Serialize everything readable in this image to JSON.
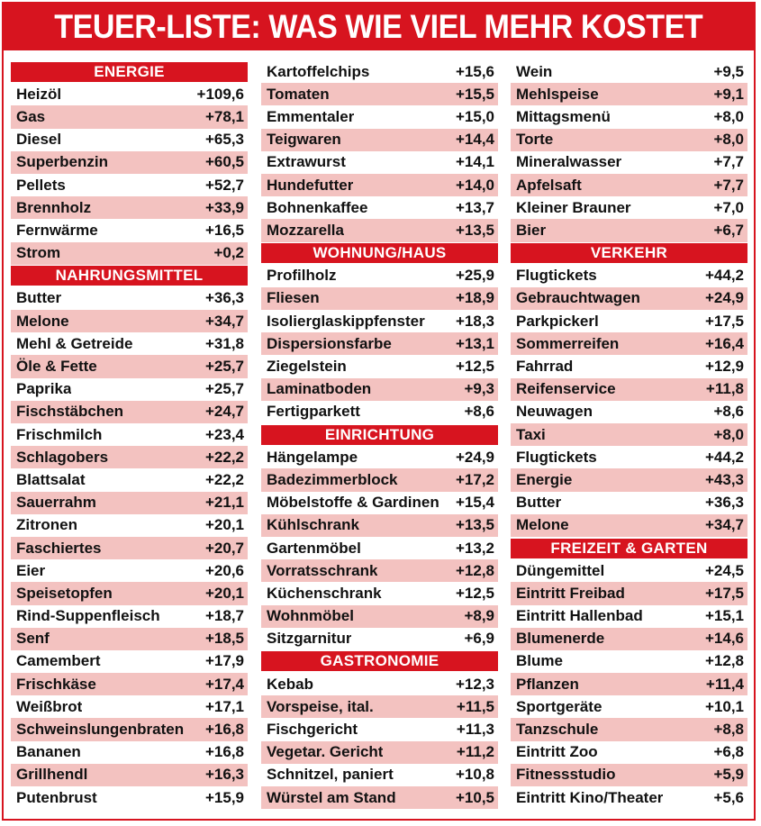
{
  "title": "TEUER-LISTE: WAS WIE VIEL MEHR KOSTET",
  "colors": {
    "accent": "#d7141f",
    "stripe": "#f3c2c0"
  },
  "columns": [
    [
      {
        "type": "header",
        "label": "ENERGIE"
      },
      {
        "type": "row",
        "label": "Heizöl",
        "value": "+109,6"
      },
      {
        "type": "row",
        "label": "Gas",
        "value": "+78,1"
      },
      {
        "type": "row",
        "label": "Diesel",
        "value": "+65,3"
      },
      {
        "type": "row",
        "label": "Superbenzin",
        "value": "+60,5"
      },
      {
        "type": "row",
        "label": "Pellets",
        "value": "+52,7"
      },
      {
        "type": "row",
        "label": "Brennholz",
        "value": "+33,9"
      },
      {
        "type": "row",
        "label": "Fernwärme",
        "value": "+16,5"
      },
      {
        "type": "row",
        "label": "Strom",
        "value": "+0,2"
      },
      {
        "type": "header",
        "label": "NAHRUNGSMITTEL"
      },
      {
        "type": "row",
        "label": "Butter",
        "value": "+36,3"
      },
      {
        "type": "row",
        "label": "Melone",
        "value": "+34,7"
      },
      {
        "type": "row",
        "label": "Mehl & Getreide",
        "value": "+31,8"
      },
      {
        "type": "row",
        "label": "Öle & Fette",
        "value": "+25,7"
      },
      {
        "type": "row",
        "label": "Paprika",
        "value": "+25,7"
      },
      {
        "type": "row",
        "label": "Fischstäbchen",
        "value": "+24,7"
      },
      {
        "type": "row",
        "label": "Frischmilch",
        "value": "+23,4"
      },
      {
        "type": "row",
        "label": "Schlagobers",
        "value": "+22,2"
      },
      {
        "type": "row",
        "label": "Blattsalat",
        "value": "+22,2"
      },
      {
        "type": "row",
        "label": "Sauerrahm",
        "value": "+21,1"
      },
      {
        "type": "row",
        "label": "Zitronen",
        "value": "+20,1"
      },
      {
        "type": "row",
        "label": "Faschiertes",
        "value": "+20,7"
      },
      {
        "type": "row",
        "label": "Eier",
        "value": "+20,6"
      },
      {
        "type": "row",
        "label": "Speisetopfen",
        "value": "+20,1"
      },
      {
        "type": "row",
        "label": "Rind-Suppenfleisch",
        "value": "+18,7"
      },
      {
        "type": "row",
        "label": "Senf",
        "value": "+18,5"
      },
      {
        "type": "row",
        "label": "Camembert",
        "value": "+17,9"
      },
      {
        "type": "row",
        "label": "Frischkäse",
        "value": "+17,4"
      },
      {
        "type": "row",
        "label": "Weißbrot",
        "value": "+17,1"
      },
      {
        "type": "row",
        "label": "Schweinslungenbraten",
        "value": "+16,8"
      },
      {
        "type": "row",
        "label": "Bananen",
        "value": "+16,8"
      },
      {
        "type": "row",
        "label": "Grillhendl",
        "value": "+16,3"
      },
      {
        "type": "row",
        "label": "Putenbrust",
        "value": "+15,9"
      }
    ],
    [
      {
        "type": "row",
        "label": "Kartoffelchips",
        "value": "+15,6"
      },
      {
        "type": "row",
        "label": "Tomaten",
        "value": "+15,5"
      },
      {
        "type": "row",
        "label": "Emmentaler",
        "value": "+15,0"
      },
      {
        "type": "row",
        "label": "Teigwaren",
        "value": "+14,4"
      },
      {
        "type": "row",
        "label": "Extrawurst",
        "value": "+14,1"
      },
      {
        "type": "row",
        "label": "Hundefutter",
        "value": "+14,0"
      },
      {
        "type": "row",
        "label": "Bohnenkaffee",
        "value": "+13,7"
      },
      {
        "type": "row",
        "label": "Mozzarella",
        "value": "+13,5"
      },
      {
        "type": "header",
        "label": "WOHNUNG/HAUS"
      },
      {
        "type": "row",
        "label": "Profilholz",
        "value": "+25,9"
      },
      {
        "type": "row",
        "label": "Fliesen",
        "value": "+18,9"
      },
      {
        "type": "row",
        "label": "Isoliergl­askippfenster",
        "value": "+18,3"
      },
      {
        "type": "row",
        "label": "Dispersionsfarbe",
        "value": "+13,1"
      },
      {
        "type": "row",
        "label": "Ziegelstein",
        "value": "+12,5"
      },
      {
        "type": "row",
        "label": "Laminatboden",
        "value": "+9,3"
      },
      {
        "type": "row",
        "label": "Fertigparkett",
        "value": "+8,6"
      },
      {
        "type": "header",
        "label": "EINRICHTUNG"
      },
      {
        "type": "row",
        "label": "Hängelampe",
        "value": "+24,9"
      },
      {
        "type": "row",
        "label": "Badezimmerblock",
        "value": "+17,2"
      },
      {
        "type": "row",
        "label": "Möbelstoffe & Gardinen",
        "value": "+15,4"
      },
      {
        "type": "row",
        "label": "Kühlschrank",
        "value": "+13,5"
      },
      {
        "type": "row",
        "label": "Gartenmöbel",
        "value": "+13,2"
      },
      {
        "type": "row",
        "label": "Vorratsschrank",
        "value": "+12,8"
      },
      {
        "type": "row",
        "label": "Küchenschrank",
        "value": "+12,5"
      },
      {
        "type": "row",
        "label": "Wohnmöbel",
        "value": "+8,9"
      },
      {
        "type": "row",
        "label": "Sitzgarnitur",
        "value": "+6,9"
      },
      {
        "type": "header",
        "label": "GASTRONOMIE"
      },
      {
        "type": "row",
        "label": "Kebab",
        "value": "+12,3"
      },
      {
        "type": "row",
        "label": "Vorspeise, ital.",
        "value": "+11,5"
      },
      {
        "type": "row",
        "label": "Fischgericht",
        "value": "+11,3"
      },
      {
        "type": "row",
        "label": "Vegetar. Gericht",
        "value": "+11,2"
      },
      {
        "type": "row",
        "label": "Schnitzel, paniert",
        "value": "+10,8"
      },
      {
        "type": "row",
        "label": "Würstel am Stand",
        "value": "+10,5"
      }
    ],
    [
      {
        "type": "row",
        "label": "Wein",
        "value": "+9,5"
      },
      {
        "type": "row",
        "label": "Mehlspeise",
        "value": "+9,1"
      },
      {
        "type": "row",
        "label": "Mittagsmenü",
        "value": "+8,0"
      },
      {
        "type": "row",
        "label": "Torte",
        "value": "+8,0"
      },
      {
        "type": "row",
        "label": "Mineralwasser",
        "value": "+7,7"
      },
      {
        "type": "row",
        "label": "Apfelsaft",
        "value": "+7,7"
      },
      {
        "type": "row",
        "label": "Kleiner Brauner",
        "value": "+7,0"
      },
      {
        "type": "row",
        "label": "Bier",
        "value": "+6,7"
      },
      {
        "type": "header",
        "label": "VERKEHR"
      },
      {
        "type": "row",
        "label": "Flugtickets",
        "value": "+44,2"
      },
      {
        "type": "row",
        "label": "Gebrauchtwagen",
        "value": "+24,9"
      },
      {
        "type": "row",
        "label": "Parkpickerl",
        "value": "+17,5"
      },
      {
        "type": "row",
        "label": "Sommerreifen",
        "value": "+16,4"
      },
      {
        "type": "row",
        "label": "Fahrrad",
        "value": "+12,9"
      },
      {
        "type": "row",
        "label": "Reifenservice",
        "value": "+11,8"
      },
      {
        "type": "row",
        "label": "Neuwagen",
        "value": "+8,6"
      },
      {
        "type": "row",
        "label": "Taxi",
        "value": "+8,0"
      },
      {
        "type": "row",
        "label": "Flugtickets",
        "value": "+44,2"
      },
      {
        "type": "row",
        "label": "Energie",
        "value": "+43,3"
      },
      {
        "type": "row",
        "label": "Butter",
        "value": "+36,3"
      },
      {
        "type": "row",
        "label": "Melone",
        "value": "+34,7"
      },
      {
        "type": "header",
        "label": "FREIZEIT & GARTEN"
      },
      {
        "type": "row",
        "label": "Düngemittel",
        "value": "+24,5"
      },
      {
        "type": "row",
        "label": "Eintritt Freibad",
        "value": "+17,5"
      },
      {
        "type": "row",
        "label": "Eintritt Hallenbad",
        "value": "+15,1"
      },
      {
        "type": "row",
        "label": "Blumenerde",
        "value": "+14,6"
      },
      {
        "type": "row",
        "label": "Blume",
        "value": "+12,8"
      },
      {
        "type": "row",
        "label": "Pflanzen",
        "value": "+11,4"
      },
      {
        "type": "row",
        "label": "Sportgeräte",
        "value": "+10,1"
      },
      {
        "type": "row",
        "label": "Tanzschule",
        "value": "+8,8"
      },
      {
        "type": "row",
        "label": "Eintritt Zoo",
        "value": "+6,8"
      },
      {
        "type": "row",
        "label": "Fitnessstudio",
        "value": "+5,9"
      },
      {
        "type": "row",
        "label": "Eintritt Kino/Theater",
        "value": "+5,6"
      }
    ]
  ]
}
